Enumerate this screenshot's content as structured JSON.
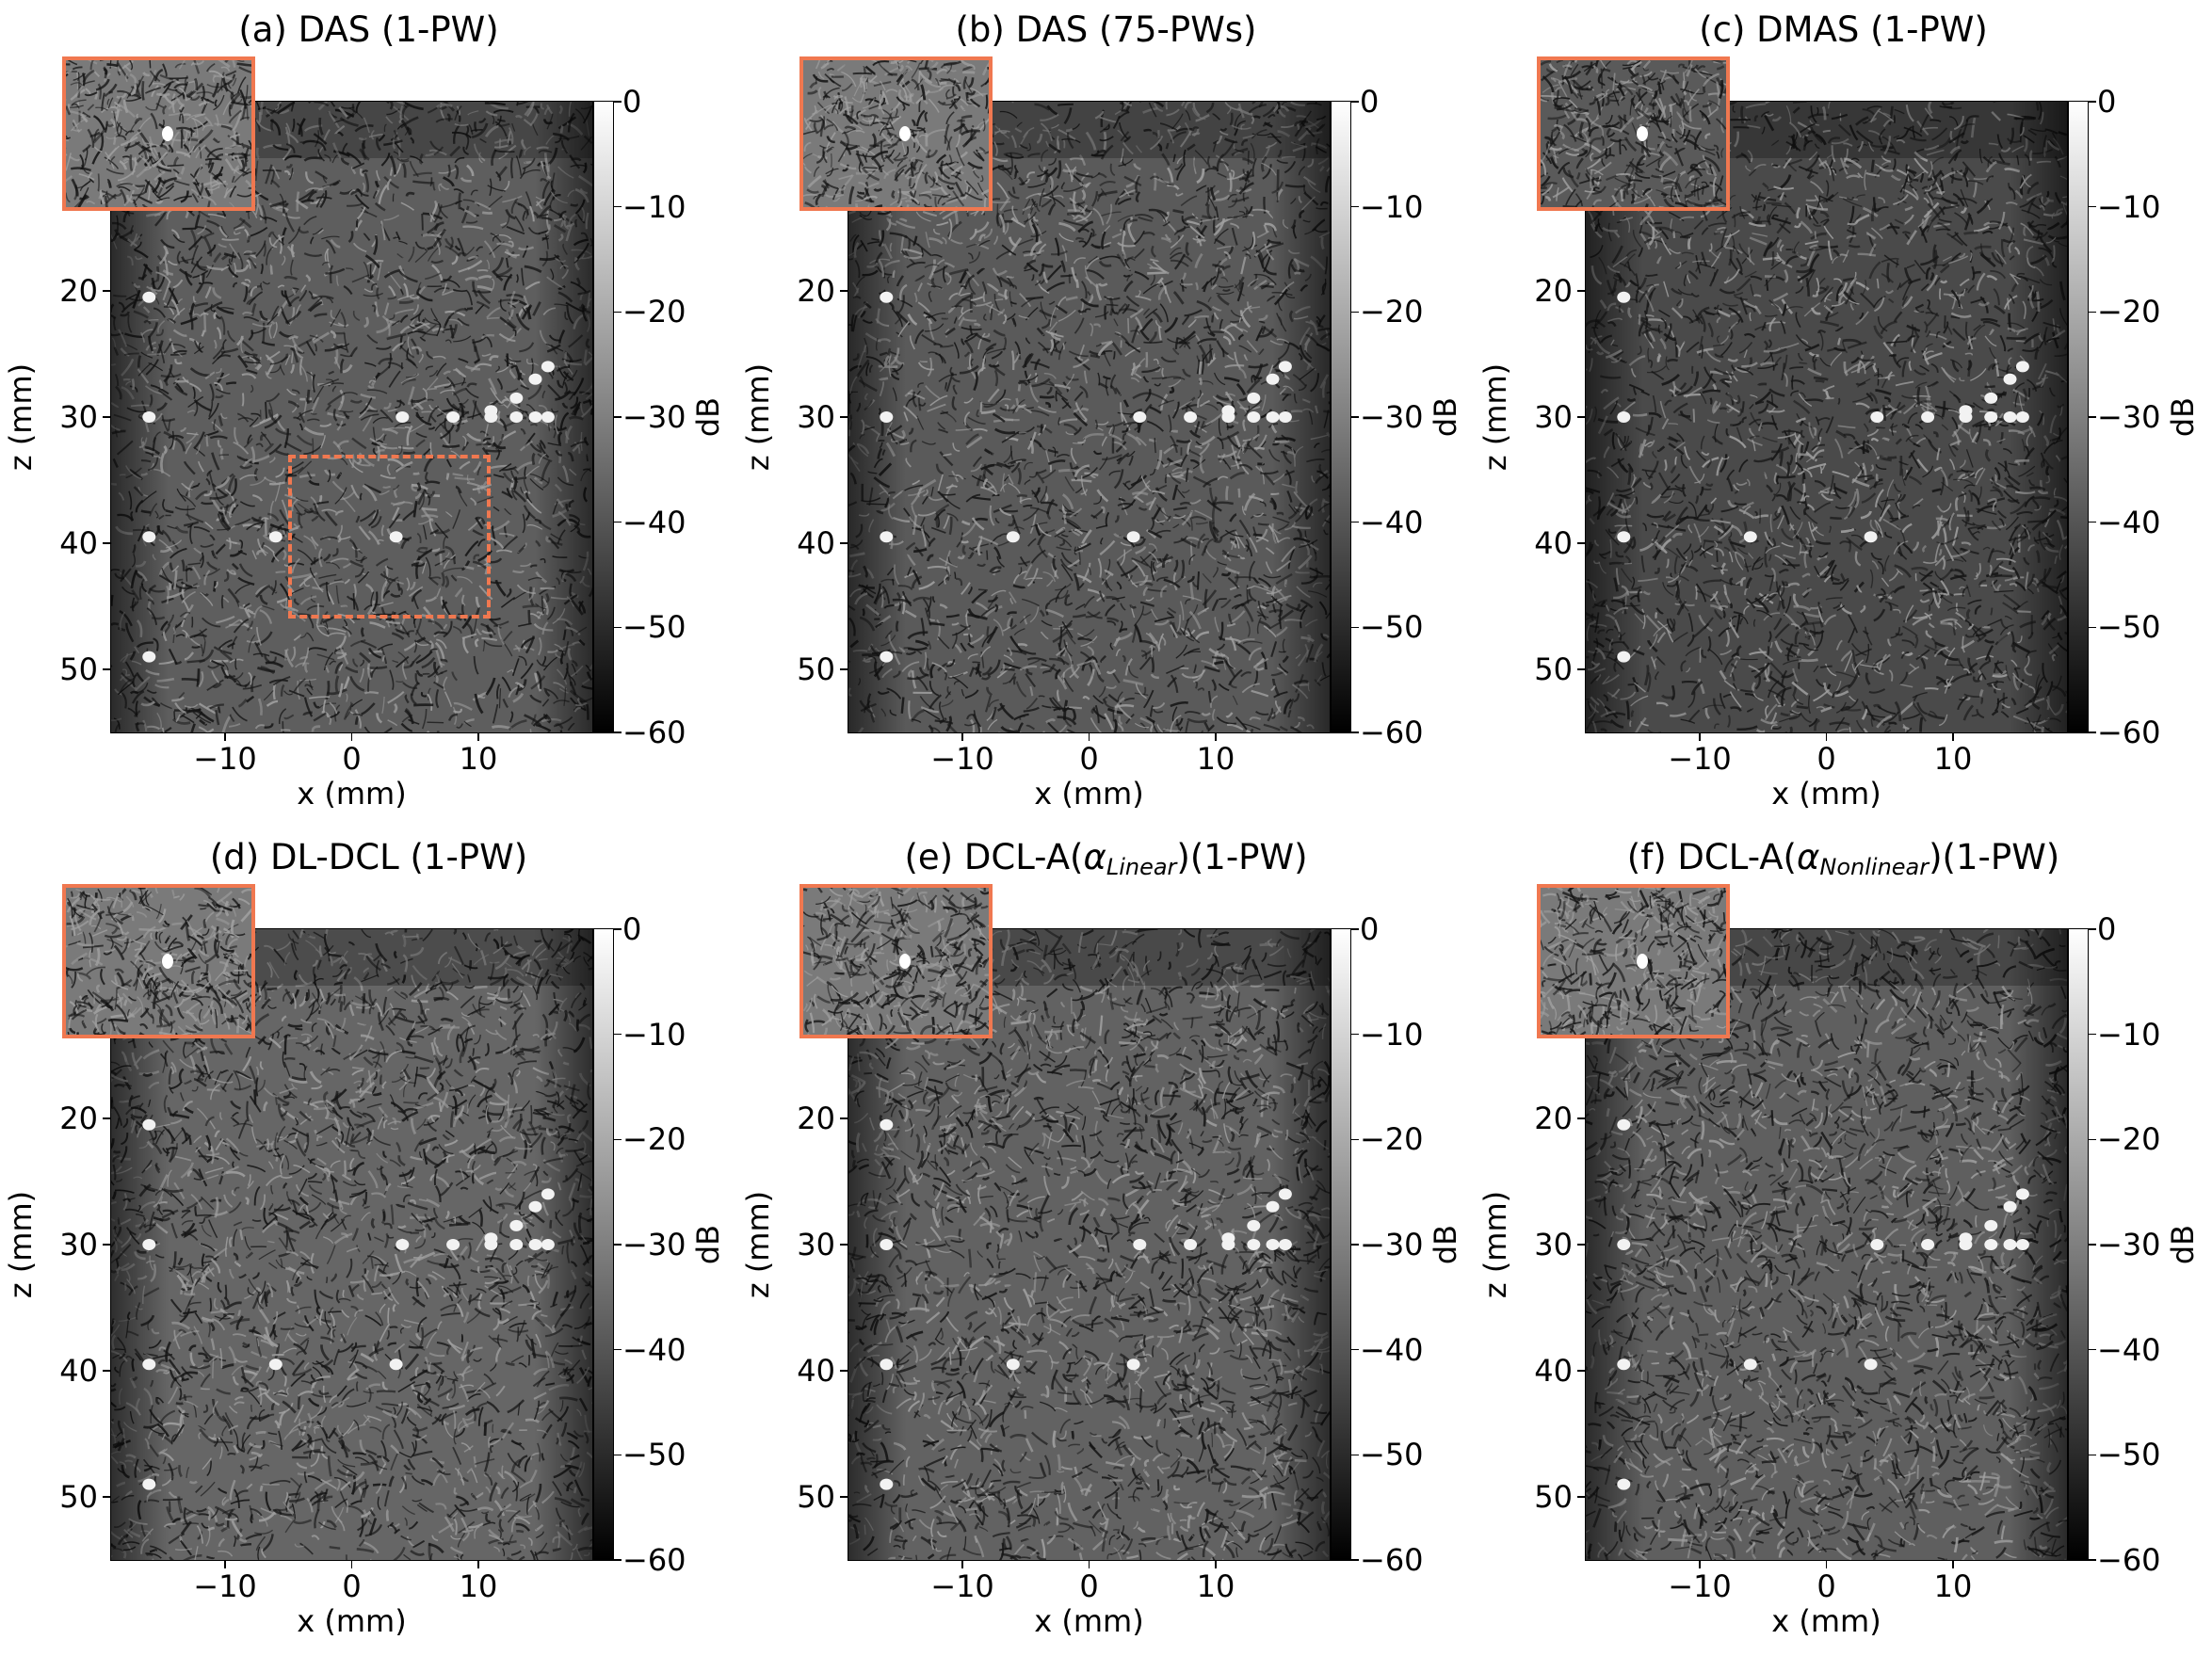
{
  "figure": {
    "x_axis_label": "x (mm)",
    "y_axis_label": "z (mm)",
    "colorbar_label": "dB",
    "x_ticks": [
      "−10",
      "0",
      "10"
    ],
    "x_tick_values": [
      -10,
      0,
      10
    ],
    "x_range_mm": [
      -19,
      19
    ],
    "y_ticks": [
      "20",
      "30",
      "40",
      "50"
    ],
    "y_tick_values": [
      20,
      30,
      40,
      50
    ],
    "y_range_mm": [
      5,
      55
    ],
    "colorbar_ticks": [
      "0",
      "−10",
      "−20",
      "−30",
      "−40",
      "−50",
      "−60"
    ],
    "colorbar_range_db": [
      -60,
      0
    ],
    "colormap": "gray",
    "inset_border_color": "#f07850",
    "roi_region_mm": {
      "x": [
        -5,
        11
      ],
      "z": [
        33,
        46
      ]
    },
    "panels": [
      {
        "title_prefix": "(a) DAS (1-PW)",
        "title_sub": "",
        "title_suffix": "",
        "show_roi": true
      },
      {
        "title_prefix": "(b) DAS (75-PWs)",
        "title_sub": "",
        "title_suffix": "",
        "show_roi": false
      },
      {
        "title_prefix": "(c) DMAS (1-PW)",
        "title_sub": "",
        "title_suffix": "",
        "show_roi": false
      },
      {
        "title_prefix": "(d) DL-DCL (1-PW)",
        "title_sub": "",
        "title_suffix": "",
        "show_roi": false
      },
      {
        "title_prefix": "(e) DCL-A(",
        "title_sub": "Linear",
        "title_suffix": ")(1-PW)",
        "show_roi": false
      },
      {
        "title_prefix": "(f) DCL-A(",
        "title_sub": "Nonlinear",
        "title_suffix": ")(1-PW)",
        "show_roi": false
      }
    ],
    "point_targets_mm": [
      [
        -16,
        20.5
      ],
      [
        -16,
        30
      ],
      [
        4,
        30
      ],
      [
        8,
        30
      ],
      [
        11,
        30
      ],
      [
        13,
        30
      ],
      [
        14.5,
        30
      ],
      [
        15.5,
        30
      ],
      [
        11,
        29.5
      ],
      [
        13,
        28.5
      ],
      [
        14.5,
        27
      ],
      [
        15.5,
        26
      ],
      [
        -16,
        39.5
      ],
      [
        -6,
        39.5
      ],
      [
        3.5,
        39.5
      ],
      [
        -16,
        49
      ]
    ]
  }
}
